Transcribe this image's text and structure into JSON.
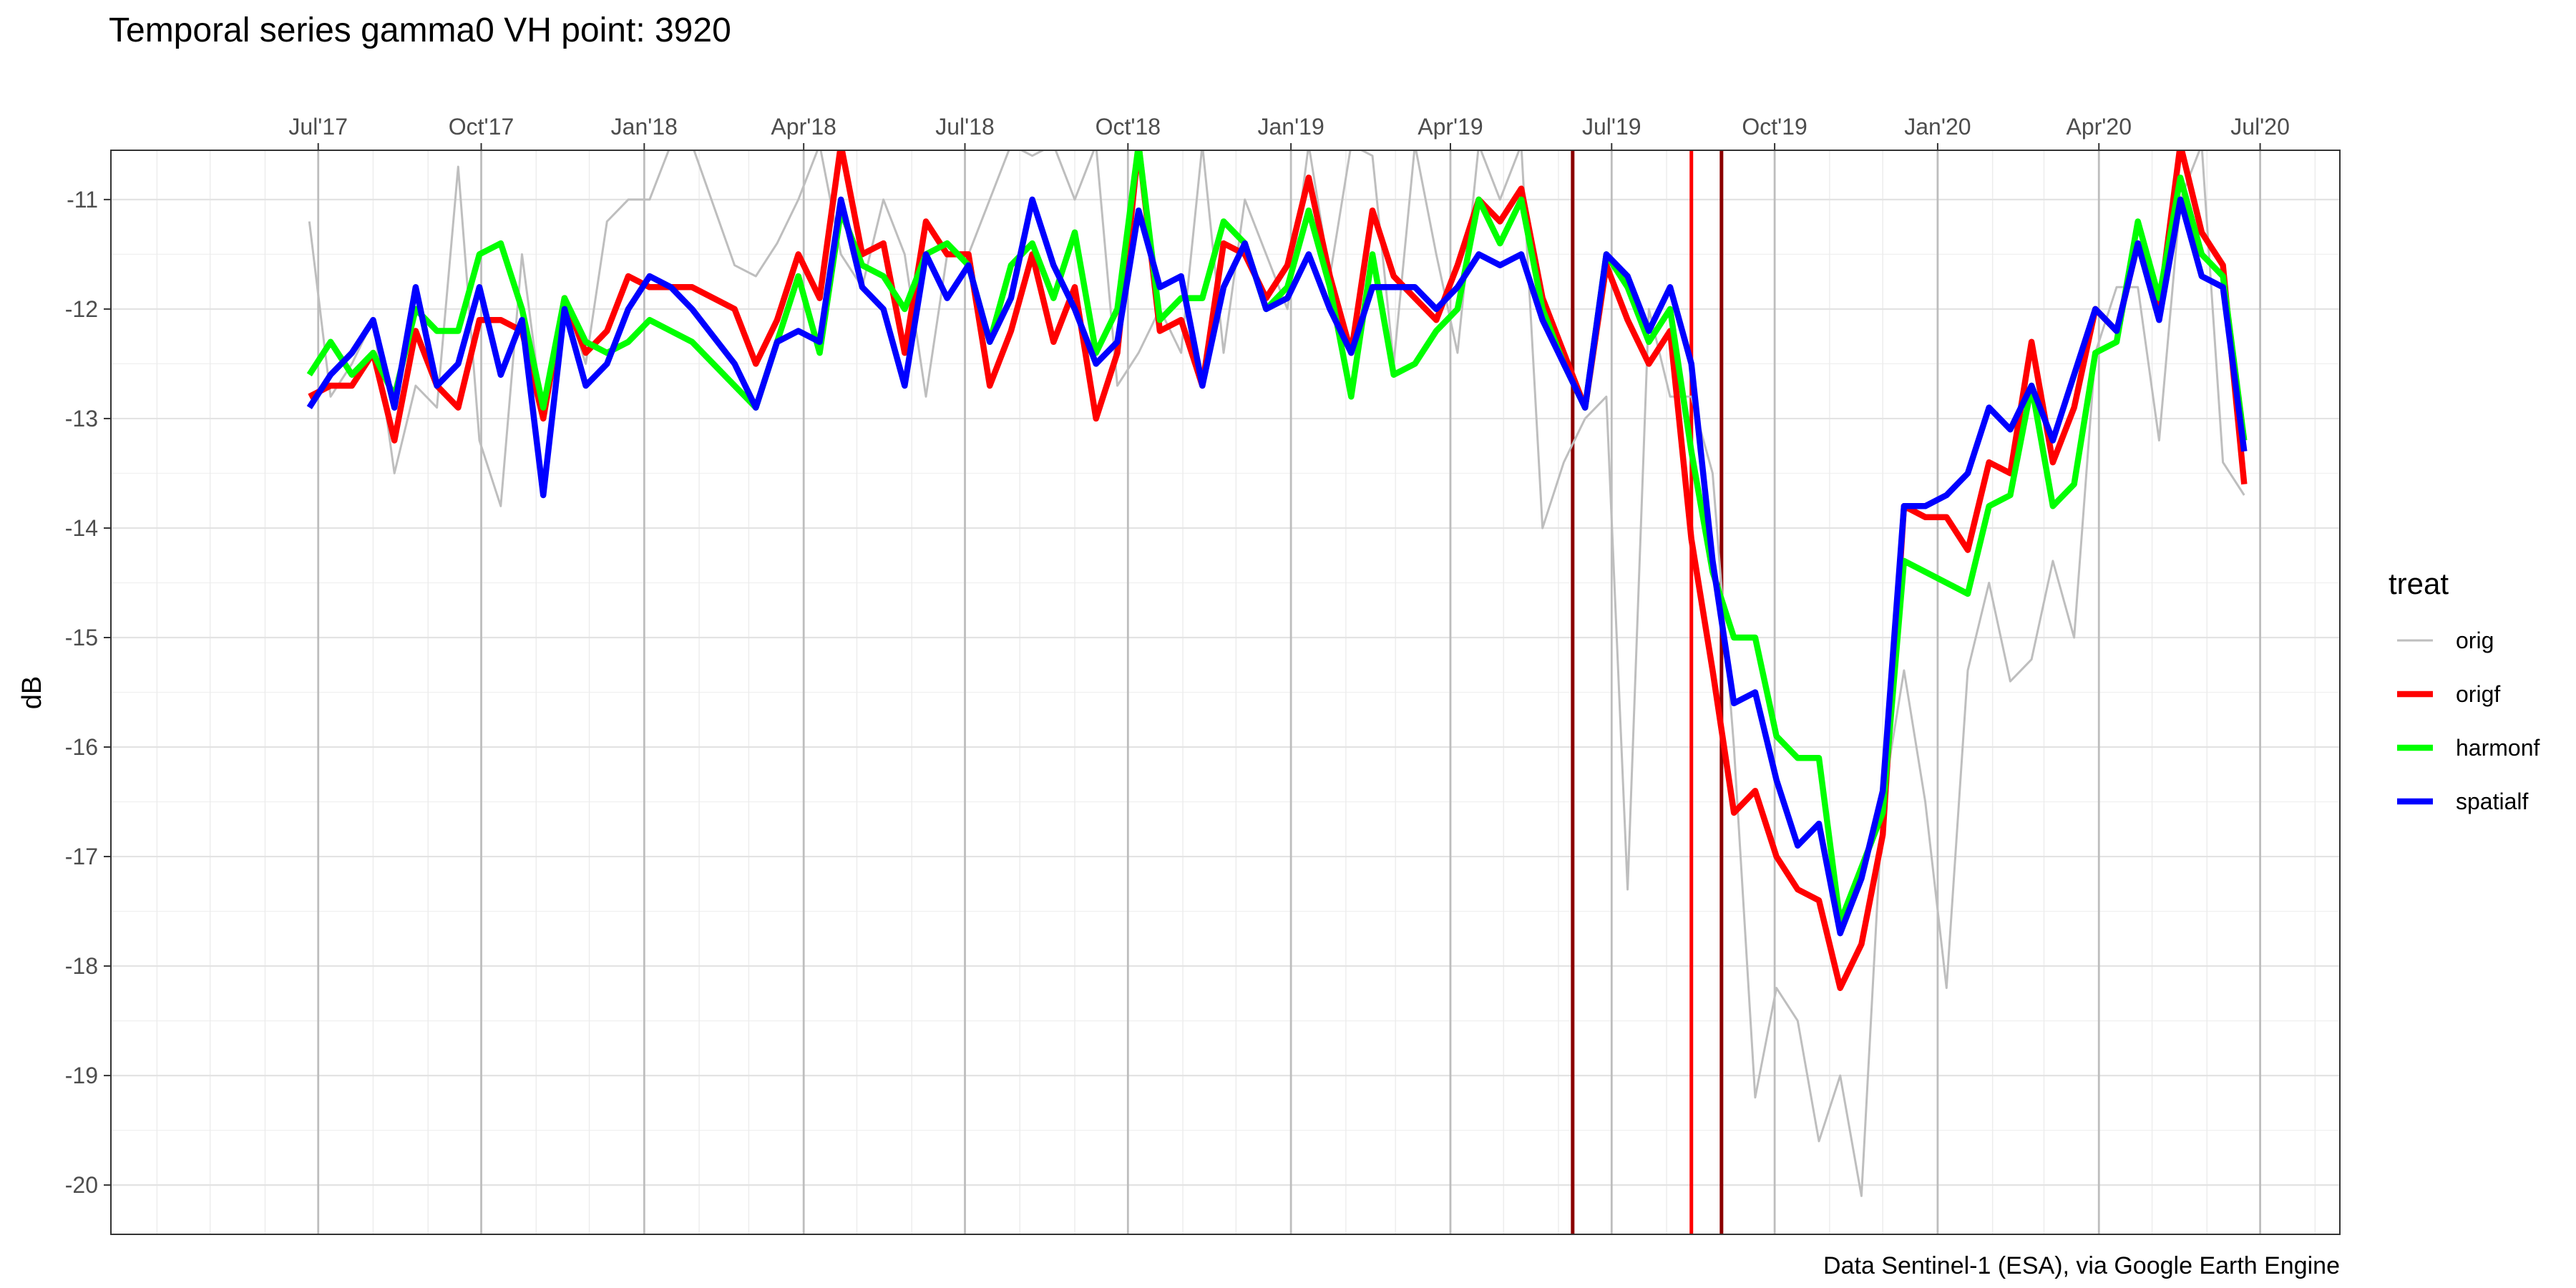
{
  "chart_data": {
    "type": "line",
    "title": "Temporal series gamma0 VH point: 3920",
    "xlabel": "",
    "ylabel": "dB",
    "caption": "Data Sentinel-1 (ESA), via Google Earth Engine",
    "x_type": "date",
    "xlim": [
      "2017-03-06",
      "2020-08-15"
    ],
    "ylim": [
      -20.45,
      -10.55
    ],
    "x_ticks": [
      {
        "date": "2017-07-01",
        "label": "Jul'17"
      },
      {
        "date": "2017-10-01",
        "label": "Oct'17"
      },
      {
        "date": "2018-01-01",
        "label": "Jan'18"
      },
      {
        "date": "2018-04-01",
        "label": "Apr'18"
      },
      {
        "date": "2018-07-01",
        "label": "Jul'18"
      },
      {
        "date": "2018-10-01",
        "label": "Oct'18"
      },
      {
        "date": "2019-01-01",
        "label": "Jan'19"
      },
      {
        "date": "2019-04-01",
        "label": "Apr'19"
      },
      {
        "date": "2019-07-01",
        "label": "Jul'19"
      },
      {
        "date": "2019-10-01",
        "label": "Oct'19"
      },
      {
        "date": "2020-01-01",
        "label": "Jan'20"
      },
      {
        "date": "2020-04-01",
        "label": "Apr'20"
      },
      {
        "date": "2020-07-01",
        "label": "Jul'20"
      }
    ],
    "y_ticks": [
      -11,
      -12,
      -13,
      -14,
      -15,
      -16,
      -17,
      -18,
      -19,
      -20
    ],
    "y_tick_labels": [
      "-11",
      "-12",
      "-13",
      "-14",
      "-15",
      "-16",
      "-17",
      "-18",
      "-19",
      "-20"
    ],
    "grid": true,
    "legend": {
      "title": "treat",
      "position": "right"
    },
    "vlines": [
      {
        "date": "2019-06-09",
        "color": "#8b0000"
      },
      {
        "date": "2019-08-15",
        "color": "#ff0000"
      },
      {
        "date": "2019-09-01",
        "color": "#8b0000"
      }
    ],
    "x": [
      "2017-06-26",
      "2017-07-08",
      "2017-07-20",
      "2017-08-01",
      "2017-08-13",
      "2017-08-25",
      "2017-09-06",
      "2017-09-18",
      "2017-09-30",
      "2017-10-12",
      "2017-10-24",
      "2017-11-05",
      "2017-11-17",
      "2017-11-29",
      "2017-12-11",
      "2017-12-23",
      "2018-01-04",
      "2018-01-16",
      "2018-01-28",
      "2018-02-21",
      "2018-03-05",
      "2018-03-17",
      "2018-03-29",
      "2018-04-10",
      "2018-04-22",
      "2018-05-04",
      "2018-05-16",
      "2018-05-28",
      "2018-06-09",
      "2018-06-21",
      "2018-07-03",
      "2018-07-15",
      "2018-07-27",
      "2018-08-08",
      "2018-08-20",
      "2018-09-01",
      "2018-09-13",
      "2018-09-25",
      "2018-10-07",
      "2018-10-19",
      "2018-10-31",
      "2018-11-12",
      "2018-11-24",
      "2018-12-06",
      "2018-12-18",
      "2018-12-30",
      "2019-01-11",
      "2019-01-23",
      "2019-02-04",
      "2019-02-16",
      "2019-02-28",
      "2019-03-12",
      "2019-03-24",
      "2019-04-05",
      "2019-04-17",
      "2019-04-29",
      "2019-05-11",
      "2019-05-23",
      "2019-06-04",
      "2019-06-16",
      "2019-06-28",
      "2019-07-10",
      "2019-07-22",
      "2019-08-03",
      "2019-08-15",
      "2019-08-27",
      "2019-09-08",
      "2019-09-20",
      "2019-10-02",
      "2019-10-14",
      "2019-10-26",
      "2019-11-07",
      "2019-11-19",
      "2019-12-01",
      "2019-12-13",
      "2019-12-25",
      "2020-01-06",
      "2020-01-18",
      "2020-01-30",
      "2020-02-11",
      "2020-02-23",
      "2020-03-06",
      "2020-03-18",
      "2020-03-30",
      "2020-04-11",
      "2020-04-23",
      "2020-05-05",
      "2020-05-17",
      "2020-05-29",
      "2020-06-10",
      "2020-06-22"
    ],
    "series": [
      {
        "name": "orig",
        "color": "#bebebe",
        "values": [
          -11.2,
          -12.8,
          -12.5,
          -12.1,
          -13.5,
          -12.7,
          -12.9,
          -10.7,
          -13.2,
          -13.8,
          -11.5,
          -13.0,
          -11.9,
          -12.5,
          -11.2,
          -11.0,
          -11.0,
          -10.5,
          -10.5,
          -11.6,
          -11.7,
          -11.4,
          -11.0,
          -10.5,
          -11.5,
          -11.8,
          -11.0,
          -11.5,
          -12.8,
          -11.5,
          -11.5,
          -11.0,
          -10.5,
          -10.6,
          -10.5,
          -11.0,
          -10.5,
          -12.7,
          -12.4,
          -12.0,
          -12.4,
          -10.5,
          -12.4,
          -11.0,
          -11.5,
          -12.0,
          -10.5,
          -11.7,
          -10.5,
          -10.6,
          -12.5,
          -10.5,
          -11.5,
          -12.4,
          -10.5,
          -11.0,
          -10.5,
          -14.0,
          -13.4,
          -13.0,
          -12.8,
          -17.3,
          -12.0,
          -12.8,
          -12.8,
          -13.5,
          -16.0,
          -19.2,
          -18.2,
          -18.5,
          -19.6,
          -19.0,
          -20.1,
          -16.5,
          -15.3,
          -16.5,
          -18.2,
          -15.3,
          -14.5,
          -15.4,
          -15.2,
          -14.3,
          -15.0,
          -12.4,
          -11.8,
          -11.8,
          -13.2,
          -11.0,
          -10.5,
          -13.4,
          -13.7
        ]
      },
      {
        "name": "origf",
        "color": "#ff0000",
        "values": [
          -12.8,
          -12.7,
          -12.7,
          -12.4,
          -13.2,
          -12.2,
          -12.7,
          -12.9,
          -12.1,
          -12.1,
          -12.2,
          -13.0,
          -11.9,
          -12.4,
          -12.2,
          -11.7,
          -11.8,
          -11.8,
          -11.8,
          -12.0,
          -12.5,
          -12.1,
          -11.5,
          -11.9,
          -10.5,
          -11.5,
          -11.4,
          -12.4,
          -11.2,
          -11.5,
          -11.5,
          -12.7,
          -12.2,
          -11.5,
          -12.3,
          -11.8,
          -13.0,
          -12.4,
          -10.5,
          -12.2,
          -12.1,
          -12.7,
          -11.4,
          -11.5,
          -11.9,
          -11.6,
          -10.8,
          -11.7,
          -12.4,
          -11.1,
          -11.7,
          -11.9,
          -12.1,
          -11.6,
          -11.0,
          -11.2,
          -10.9,
          -11.9,
          -12.4,
          -12.9,
          -11.6,
          -12.1,
          -12.5,
          -12.2,
          -14.1,
          -15.3,
          -16.6,
          -16.4,
          -17.0,
          -17.3,
          -17.4,
          -18.2,
          -17.8,
          -16.8,
          -13.8,
          -13.9,
          -13.9,
          -14.2,
          -13.4,
          -13.5,
          -12.3,
          -13.4,
          -12.9,
          -12.0,
          -12.2,
          -11.4,
          -12.0,
          -10.5,
          -11.3,
          -11.6,
          -13.6
        ]
      },
      {
        "name": "harmonf",
        "color": "#00ff00",
        "values": [
          -12.6,
          -12.3,
          -12.6,
          -12.4,
          -12.8,
          -12.0,
          -12.2,
          -12.2,
          -11.5,
          -11.4,
          -12.0,
          -12.9,
          -11.9,
          -12.3,
          -12.4,
          -12.3,
          -12.1,
          -12.2,
          -12.3,
          -12.7,
          -12.9,
          -12.3,
          -11.7,
          -12.4,
          -11.1,
          -11.6,
          -11.7,
          -12.0,
          -11.5,
          -11.4,
          -11.6,
          -12.3,
          -11.6,
          -11.4,
          -11.9,
          -11.3,
          -12.4,
          -12.0,
          -10.5,
          -12.1,
          -11.9,
          -11.9,
          -11.2,
          -11.4,
          -12.0,
          -11.8,
          -11.1,
          -11.8,
          -12.8,
          -11.5,
          -12.6,
          -12.5,
          -12.2,
          -12.0,
          -11.0,
          -11.4,
          -11.0,
          -12.0,
          -12.5,
          -12.9,
          -11.5,
          -11.8,
          -12.3,
          -12.0,
          -13.3,
          -14.4,
          -15.0,
          -15.0,
          -15.9,
          -16.1,
          -16.1,
          -17.6,
          -17.1,
          -16.6,
          -14.3,
          -14.4,
          -14.5,
          -14.6,
          -13.8,
          -13.7,
          -12.7,
          -13.8,
          -13.6,
          -12.4,
          -12.3,
          -11.2,
          -11.9,
          -10.8,
          -11.5,
          -11.7,
          -13.2
        ]
      },
      {
        "name": "spatialf",
        "color": "#0000ff",
        "values": [
          -12.9,
          -12.6,
          -12.4,
          -12.1,
          -12.9,
          -11.8,
          -12.7,
          -12.5,
          -11.8,
          -12.6,
          -12.1,
          -13.7,
          -12.0,
          -12.7,
          -12.5,
          -12.0,
          -11.7,
          -11.8,
          -12.0,
          -12.5,
          -12.9,
          -12.3,
          -12.2,
          -12.3,
          -11.0,
          -11.8,
          -12.0,
          -12.7,
          -11.5,
          -11.9,
          -11.6,
          -12.3,
          -11.9,
          -11.0,
          -11.6,
          -12.0,
          -12.5,
          -12.3,
          -11.1,
          -11.8,
          -11.7,
          -12.7,
          -11.8,
          -11.4,
          -12.0,
          -11.9,
          -11.5,
          -12.0,
          -12.4,
          -11.8,
          -11.8,
          -11.8,
          -12.0,
          -11.8,
          -11.5,
          -11.6,
          -11.5,
          -12.1,
          -12.5,
          -12.9,
          -11.5,
          -11.7,
          -12.2,
          -11.8,
          -12.5,
          -14.3,
          -15.6,
          -15.5,
          -16.3,
          -16.9,
          -16.7,
          -17.7,
          -17.2,
          -16.4,
          -13.8,
          -13.8,
          -13.7,
          -13.5,
          -12.9,
          -13.1,
          -12.7,
          -13.2,
          -12.6,
          -12.0,
          -12.2,
          -11.4,
          -12.1,
          -11.0,
          -11.7,
          -11.8,
          -13.3
        ]
      }
    ]
  }
}
